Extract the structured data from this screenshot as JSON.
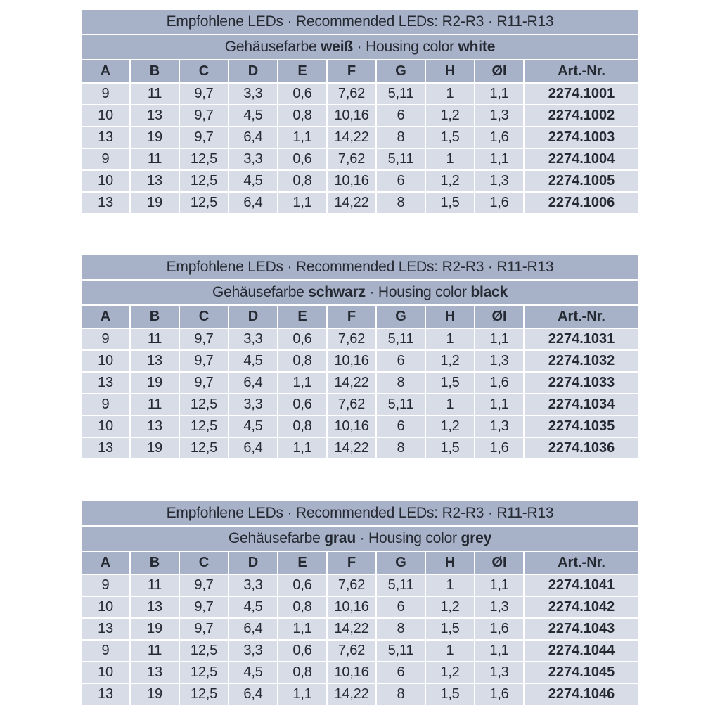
{
  "colors": {
    "header_band": "#a7b2c8",
    "row_bg": "#d7dce7",
    "page_bg": "#ffffff",
    "text": "#252932"
  },
  "shared": {
    "title": "Empfohlene LEDs · Recommended LEDs: R2-R3 · R11-R13",
    "columns": [
      "A",
      "B",
      "C",
      "D",
      "E",
      "F",
      "G",
      "H",
      "ØI",
      "Art.-Nr."
    ]
  },
  "tables": [
    {
      "id": "white",
      "subtitle": {
        "prefix": "Gehäusefarbe",
        "de": "weiß",
        "mid": "· Housing color",
        "en": "white"
      },
      "rows": [
        [
          "9",
          "11",
          "9,7",
          "3,3",
          "0,6",
          "7,62",
          "5,11",
          "1",
          "1,1",
          "2274.1001"
        ],
        [
          "10",
          "13",
          "9,7",
          "4,5",
          "0,8",
          "10,16",
          "6",
          "1,2",
          "1,3",
          "2274.1002"
        ],
        [
          "13",
          "19",
          "9,7",
          "6,4",
          "1,1",
          "14,22",
          "8",
          "1,5",
          "1,6",
          "2274.1003"
        ],
        [
          "9",
          "11",
          "12,5",
          "3,3",
          "0,6",
          "7,62",
          "5,11",
          "1",
          "1,1",
          "2274.1004"
        ],
        [
          "10",
          "13",
          "12,5",
          "4,5",
          "0,8",
          "10,16",
          "6",
          "1,2",
          "1,3",
          "2274.1005"
        ],
        [
          "13",
          "19",
          "12,5",
          "6,4",
          "1,1",
          "14,22",
          "8",
          "1,5",
          "1,6",
          "2274.1006"
        ]
      ]
    },
    {
      "id": "black",
      "subtitle": {
        "prefix": "Gehäusefarbe",
        "de": "schwarz",
        "mid": "· Housing color",
        "en": "black"
      },
      "rows": [
        [
          "9",
          "11",
          "9,7",
          "3,3",
          "0,6",
          "7,62",
          "5,11",
          "1",
          "1,1",
          "2274.1031"
        ],
        [
          "10",
          "13",
          "9,7",
          "4,5",
          "0,8",
          "10,16",
          "6",
          "1,2",
          "1,3",
          "2274.1032"
        ],
        [
          "13",
          "19",
          "9,7",
          "6,4",
          "1,1",
          "14,22",
          "8",
          "1,5",
          "1,6",
          "2274.1033"
        ],
        [
          "9",
          "11",
          "12,5",
          "3,3",
          "0,6",
          "7,62",
          "5,11",
          "1",
          "1,1",
          "2274.1034"
        ],
        [
          "10",
          "13",
          "12,5",
          "4,5",
          "0,8",
          "10,16",
          "6",
          "1,2",
          "1,3",
          "2274.1035"
        ],
        [
          "13",
          "19",
          "12,5",
          "6,4",
          "1,1",
          "14,22",
          "8",
          "1,5",
          "1,6",
          "2274.1036"
        ]
      ]
    },
    {
      "id": "grey",
      "subtitle": {
        "prefix": "Gehäusefarbe",
        "de": "grau",
        "mid": "· Housing color",
        "en": "grey"
      },
      "rows": [
        [
          "9",
          "11",
          "9,7",
          "3,3",
          "0,6",
          "7,62",
          "5,11",
          "1",
          "1,1",
          "2274.1041"
        ],
        [
          "10",
          "13",
          "9,7",
          "4,5",
          "0,8",
          "10,16",
          "6",
          "1,2",
          "1,3",
          "2274.1042"
        ],
        [
          "13",
          "19",
          "9,7",
          "6,4",
          "1,1",
          "14,22",
          "8",
          "1,5",
          "1,6",
          "2274.1043"
        ],
        [
          "9",
          "11",
          "12,5",
          "3,3",
          "0,6",
          "7,62",
          "5,11",
          "1",
          "1,1",
          "2274.1044"
        ],
        [
          "10",
          "13",
          "12,5",
          "4,5",
          "0,8",
          "10,16",
          "6",
          "1,2",
          "1,3",
          "2274.1045"
        ],
        [
          "13",
          "19",
          "12,5",
          "6,4",
          "1,1",
          "14,22",
          "8",
          "1,5",
          "1,6",
          "2274.1046"
        ]
      ]
    }
  ]
}
